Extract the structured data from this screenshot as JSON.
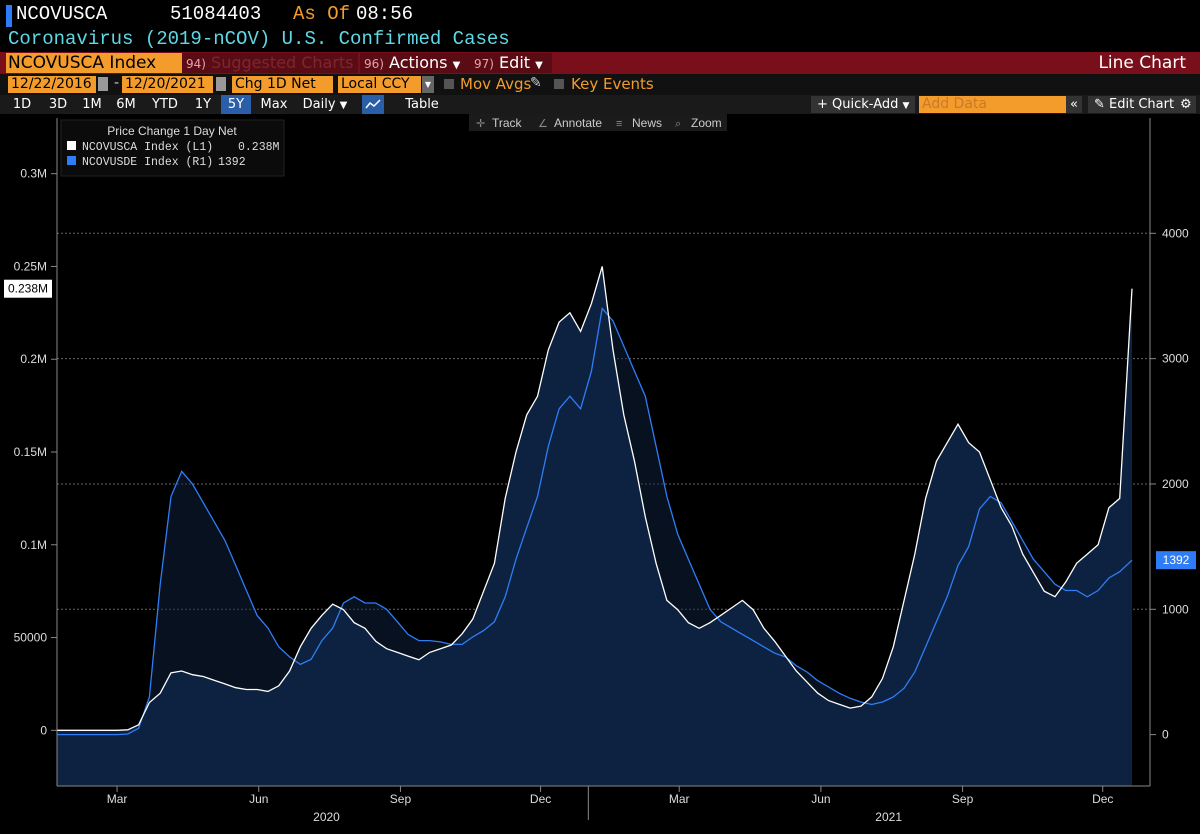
{
  "header": {
    "ticker": "NCOVUSCA",
    "value": "51084403",
    "as_of_label": "As Of",
    "time": "08:56",
    "description": "Coronavirus (2019-nCOV) U.S. Confirmed Cases"
  },
  "toolbar": {
    "security": "NCOVUSCA Index",
    "suggested_num": "94)",
    "suggested_label": "Suggested Charts",
    "actions_num": "96)",
    "actions_label": "Actions",
    "edit_num": "97)",
    "edit_label": "Edit",
    "chart_type": "Line Chart"
  },
  "params": {
    "start_date": "12/22/2016",
    "dash": "-",
    "end_date": "12/20/2021",
    "field": "Chg 1D Net",
    "currency": "Local CCY",
    "mov_avgs": "Mov Avgs",
    "key_events": "Key Events"
  },
  "periods": {
    "buttons": [
      "1D",
      "3D",
      "1M",
      "6M",
      "YTD",
      "1Y",
      "5Y",
      "Max"
    ],
    "active": "5Y",
    "frequency": "Daily",
    "table_label": "Table",
    "quick_add": "Quick-Add",
    "add_data_placeholder": "Add Data",
    "edit_chart": "Edit Chart"
  },
  "chart_tools": [
    "Track",
    "Annotate",
    "News",
    "Zoom"
  ],
  "chart_data": {
    "type": "area",
    "legend": {
      "title": "Price Change 1 Day Net",
      "entries": [
        {
          "name": "NCOVUSCA Index  (L1)",
          "last": "0.238M",
          "color": "#ffffff"
        },
        {
          "name": "NCOVUSDE Index  (R1)",
          "last": "1392",
          "color": "#2f7df6"
        }
      ]
    },
    "left_axis": {
      "ticks": [
        0,
        50000,
        100000,
        150000,
        200000,
        250000,
        300000
      ],
      "labels": [
        "0",
        "50000",
        "0.1M",
        "0.15M",
        "0.2M",
        "0.25M",
        "0.3M"
      ],
      "ylim": [
        -30000,
        330000
      ],
      "last_label": "0.238M",
      "last_value": 238000
    },
    "right_axis": {
      "ticks": [
        0,
        1000,
        2000,
        3000,
        4000
      ],
      "labels": [
        "0",
        "1000",
        "2000",
        "3000",
        "4000"
      ],
      "ylim": [
        -410,
        4920
      ],
      "last_label": "1392",
      "last_value": 1392
    },
    "x_axis": {
      "month_labels": [
        "Mar",
        "Jun",
        "Sep",
        "Dec",
        "Mar",
        "Jun",
        "Sep",
        "Dec"
      ],
      "month_dates": [
        "2020-03-01",
        "2020-06-01",
        "2020-09-01",
        "2020-12-01",
        "2021-03-01",
        "2021-06-01",
        "2021-09-01",
        "2021-12-01"
      ],
      "year_labels": [
        "2020",
        "2021"
      ],
      "year_dates": [
        "2020-07-15",
        "2021-07-15"
      ],
      "range": [
        "2020-01-22",
        "2021-12-20"
      ]
    },
    "series": [
      {
        "name": "NCOVUSCA Index",
        "axis": "left",
        "color": "#ffffff",
        "fill": "#0d2240",
        "points": [
          [
            "2020-01-22",
            0
          ],
          [
            "2020-03-01",
            0
          ],
          [
            "2020-03-08",
            300
          ],
          [
            "2020-03-15",
            3000
          ],
          [
            "2020-03-22",
            15000
          ],
          [
            "2020-03-29",
            20000
          ],
          [
            "2020-04-05",
            31000
          ],
          [
            "2020-04-12",
            32000
          ],
          [
            "2020-04-19",
            30000
          ],
          [
            "2020-04-26",
            29000
          ],
          [
            "2020-05-03",
            27000
          ],
          [
            "2020-05-10",
            25000
          ],
          [
            "2020-05-17",
            23000
          ],
          [
            "2020-05-24",
            22000
          ],
          [
            "2020-05-31",
            22000
          ],
          [
            "2020-06-07",
            21000
          ],
          [
            "2020-06-14",
            24000
          ],
          [
            "2020-06-21",
            32000
          ],
          [
            "2020-06-28",
            45000
          ],
          [
            "2020-07-05",
            55000
          ],
          [
            "2020-07-12",
            62000
          ],
          [
            "2020-07-19",
            68000
          ],
          [
            "2020-07-26",
            65000
          ],
          [
            "2020-08-02",
            58000
          ],
          [
            "2020-08-09",
            55000
          ],
          [
            "2020-08-16",
            48000
          ],
          [
            "2020-08-23",
            44000
          ],
          [
            "2020-08-30",
            42000
          ],
          [
            "2020-09-06",
            40000
          ],
          [
            "2020-09-13",
            38000
          ],
          [
            "2020-09-20",
            42000
          ],
          [
            "2020-09-27",
            44000
          ],
          [
            "2020-10-04",
            46000
          ],
          [
            "2020-10-11",
            52000
          ],
          [
            "2020-10-18",
            60000
          ],
          [
            "2020-10-25",
            75000
          ],
          [
            "2020-11-01",
            90000
          ],
          [
            "2020-11-08",
            125000
          ],
          [
            "2020-11-15",
            150000
          ],
          [
            "2020-11-22",
            170000
          ],
          [
            "2020-11-29",
            180000
          ],
          [
            "2020-12-06",
            205000
          ],
          [
            "2020-12-13",
            220000
          ],
          [
            "2020-12-20",
            225000
          ],
          [
            "2020-12-27",
            215000
          ],
          [
            "2021-01-03",
            230000
          ],
          [
            "2021-01-10",
            250000
          ],
          [
            "2021-01-17",
            205000
          ],
          [
            "2021-01-24",
            170000
          ],
          [
            "2021-01-31",
            145000
          ],
          [
            "2021-02-07",
            115000
          ],
          [
            "2021-02-14",
            90000
          ],
          [
            "2021-02-21",
            70000
          ],
          [
            "2021-02-28",
            65000
          ],
          [
            "2021-03-07",
            58000
          ],
          [
            "2021-03-14",
            55000
          ],
          [
            "2021-03-21",
            58000
          ],
          [
            "2021-03-28",
            62000
          ],
          [
            "2021-04-04",
            66000
          ],
          [
            "2021-04-11",
            70000
          ],
          [
            "2021-04-18",
            65000
          ],
          [
            "2021-04-25",
            55000
          ],
          [
            "2021-05-02",
            48000
          ],
          [
            "2021-05-09",
            40000
          ],
          [
            "2021-05-16",
            32000
          ],
          [
            "2021-05-23",
            26000
          ],
          [
            "2021-05-30",
            20000
          ],
          [
            "2021-06-06",
            16000
          ],
          [
            "2021-06-13",
            14000
          ],
          [
            "2021-06-20",
            12000
          ],
          [
            "2021-06-27",
            13000
          ],
          [
            "2021-07-04",
            18000
          ],
          [
            "2021-07-11",
            28000
          ],
          [
            "2021-07-18",
            45000
          ],
          [
            "2021-07-25",
            70000
          ],
          [
            "2021-08-01",
            95000
          ],
          [
            "2021-08-08",
            125000
          ],
          [
            "2021-08-15",
            145000
          ],
          [
            "2021-08-22",
            155000
          ],
          [
            "2021-08-29",
            165000
          ],
          [
            "2021-09-05",
            155000
          ],
          [
            "2021-09-12",
            150000
          ],
          [
            "2021-09-19",
            135000
          ],
          [
            "2021-09-26",
            120000
          ],
          [
            "2021-10-03",
            110000
          ],
          [
            "2021-10-10",
            95000
          ],
          [
            "2021-10-17",
            85000
          ],
          [
            "2021-10-24",
            75000
          ],
          [
            "2021-10-31",
            72000
          ],
          [
            "2021-11-07",
            80000
          ],
          [
            "2021-11-14",
            90000
          ],
          [
            "2021-11-21",
            95000
          ],
          [
            "2021-11-28",
            100000
          ],
          [
            "2021-12-05",
            120000
          ],
          [
            "2021-12-12",
            125000
          ],
          [
            "2021-12-20",
            238000
          ]
        ]
      },
      {
        "name": "NCOVUSDE Index",
        "axis": "right",
        "color": "#2f7df6",
        "fill": "#0d2240",
        "points": [
          [
            "2020-01-22",
            0
          ],
          [
            "2020-03-01",
            0
          ],
          [
            "2020-03-08",
            5
          ],
          [
            "2020-03-15",
            50
          ],
          [
            "2020-03-22",
            300
          ],
          [
            "2020-03-29",
            1200
          ],
          [
            "2020-04-05",
            1900
          ],
          [
            "2020-04-12",
            2100
          ],
          [
            "2020-04-19",
            2000
          ],
          [
            "2020-04-26",
            1850
          ],
          [
            "2020-05-03",
            1700
          ],
          [
            "2020-05-10",
            1550
          ],
          [
            "2020-05-17",
            1350
          ],
          [
            "2020-05-24",
            1150
          ],
          [
            "2020-05-31",
            950
          ],
          [
            "2020-06-07",
            850
          ],
          [
            "2020-06-14",
            700
          ],
          [
            "2020-06-21",
            620
          ],
          [
            "2020-06-28",
            560
          ],
          [
            "2020-07-05",
            600
          ],
          [
            "2020-07-12",
            750
          ],
          [
            "2020-07-19",
            850
          ],
          [
            "2020-07-26",
            1050
          ],
          [
            "2020-08-02",
            1100
          ],
          [
            "2020-08-09",
            1050
          ],
          [
            "2020-08-16",
            1050
          ],
          [
            "2020-08-23",
            1000
          ],
          [
            "2020-08-30",
            900
          ],
          [
            "2020-09-06",
            800
          ],
          [
            "2020-09-13",
            750
          ],
          [
            "2020-09-20",
            750
          ],
          [
            "2020-09-27",
            740
          ],
          [
            "2020-10-04",
            720
          ],
          [
            "2020-10-11",
            720
          ],
          [
            "2020-10-18",
            780
          ],
          [
            "2020-10-25",
            830
          ],
          [
            "2020-11-01",
            900
          ],
          [
            "2020-11-08",
            1100
          ],
          [
            "2020-11-15",
            1400
          ],
          [
            "2020-11-22",
            1650
          ],
          [
            "2020-11-29",
            1900
          ],
          [
            "2020-12-06",
            2300
          ],
          [
            "2020-12-13",
            2600
          ],
          [
            "2020-12-20",
            2700
          ],
          [
            "2020-12-27",
            2600
          ],
          [
            "2021-01-03",
            2900
          ],
          [
            "2021-01-10",
            3400
          ],
          [
            "2021-01-17",
            3300
          ],
          [
            "2021-01-24",
            3100
          ],
          [
            "2021-01-31",
            2900
          ],
          [
            "2021-02-07",
            2700
          ],
          [
            "2021-02-14",
            2300
          ],
          [
            "2021-02-21",
            1900
          ],
          [
            "2021-02-28",
            1600
          ],
          [
            "2021-03-07",
            1400
          ],
          [
            "2021-03-14",
            1200
          ],
          [
            "2021-03-21",
            1000
          ],
          [
            "2021-03-28",
            900
          ],
          [
            "2021-04-04",
            850
          ],
          [
            "2021-04-11",
            800
          ],
          [
            "2021-04-18",
            750
          ],
          [
            "2021-04-25",
            700
          ],
          [
            "2021-05-02",
            650
          ],
          [
            "2021-05-09",
            620
          ],
          [
            "2021-05-16",
            550
          ],
          [
            "2021-05-23",
            500
          ],
          [
            "2021-05-30",
            430
          ],
          [
            "2021-06-06",
            380
          ],
          [
            "2021-06-13",
            330
          ],
          [
            "2021-06-20",
            290
          ],
          [
            "2021-06-27",
            260
          ],
          [
            "2021-07-04",
            240
          ],
          [
            "2021-07-11",
            260
          ],
          [
            "2021-07-18",
            300
          ],
          [
            "2021-07-25",
            370
          ],
          [
            "2021-08-01",
            500
          ],
          [
            "2021-08-08",
            700
          ],
          [
            "2021-08-15",
            900
          ],
          [
            "2021-08-22",
            1100
          ],
          [
            "2021-08-29",
            1350
          ],
          [
            "2021-09-05",
            1500
          ],
          [
            "2021-09-12",
            1800
          ],
          [
            "2021-09-19",
            1900
          ],
          [
            "2021-09-26",
            1850
          ],
          [
            "2021-10-03",
            1700
          ],
          [
            "2021-10-10",
            1550
          ],
          [
            "2021-10-17",
            1400
          ],
          [
            "2021-10-24",
            1300
          ],
          [
            "2021-10-31",
            1200
          ],
          [
            "2021-11-07",
            1150
          ],
          [
            "2021-11-14",
            1150
          ],
          [
            "2021-11-21",
            1100
          ],
          [
            "2021-11-28",
            1150
          ],
          [
            "2021-12-05",
            1250
          ],
          [
            "2021-12-12",
            1300
          ],
          [
            "2021-12-20",
            1392
          ]
        ]
      }
    ]
  }
}
